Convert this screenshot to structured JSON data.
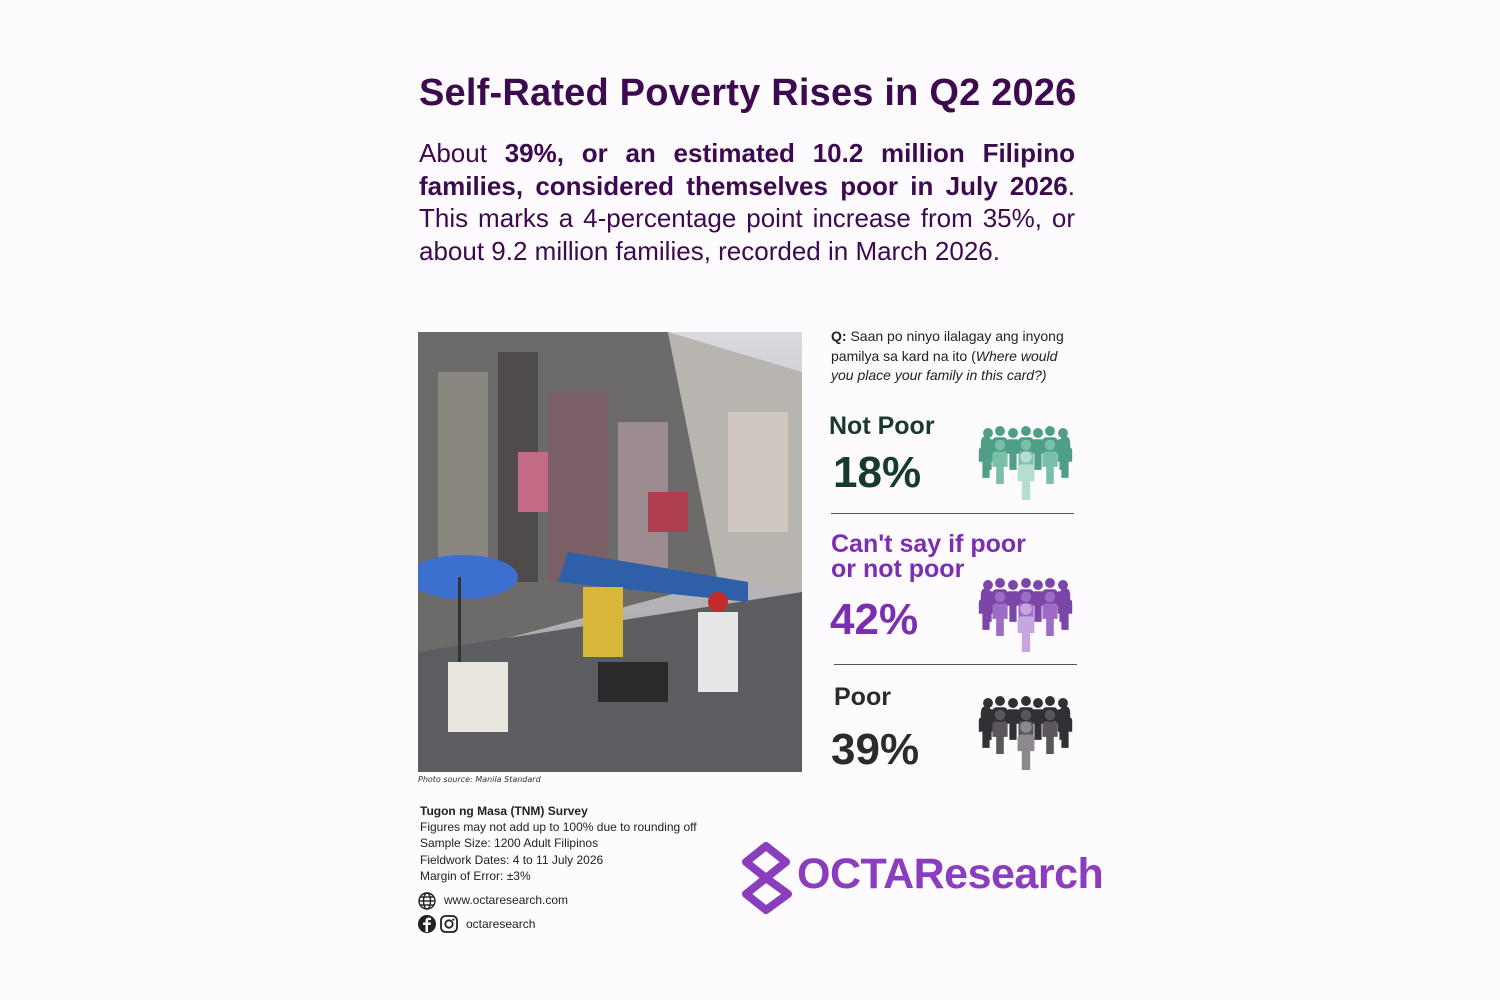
{
  "header": {
    "title": "Self-Rated Poverty Rises in Q2 2026"
  },
  "summary": [
    {
      "text": "About "
    },
    {
      "text": "39%, or an estimated 10.2 million Filipino families, considered themselves poor in July 2026"
    },
    {
      "text": ". This marks a 4-percentage point increase from 35%, or about 9.2 million families, recorded in March 2026."
    }
  ],
  "photo": {
    "caption": "Photo source: Manila Standard"
  },
  "question": [
    {
      "text": "Q:"
    },
    {
      "text": " Saan po ninyo ilalagay ang inyong pamilya sa kard na ito ("
    },
    {
      "text": "Where would you place your family in this card?)"
    }
  ],
  "items": [
    {
      "label": "Not Poor",
      "value": "18%"
    },
    {
      "label": "Can't say if poor or not poor",
      "value": "42%"
    },
    {
      "label": "Poor",
      "value": "39%"
    }
  ],
  "notes": {
    "title": "Tugon ng Masa (TNM) Survey",
    "lines": [
      "Figures may not add up to 100% due to rounding off",
      "Sample Size: 1200 Adult Filipinos",
      "Fieldwork Dates: 4 to 11 July 2026",
      "Margin of Error: ±3%"
    ]
  },
  "links": {
    "website": "www.octaresearch.com",
    "social": "octaresearch"
  },
  "logo": {
    "text": "OCTAResearch"
  }
}
